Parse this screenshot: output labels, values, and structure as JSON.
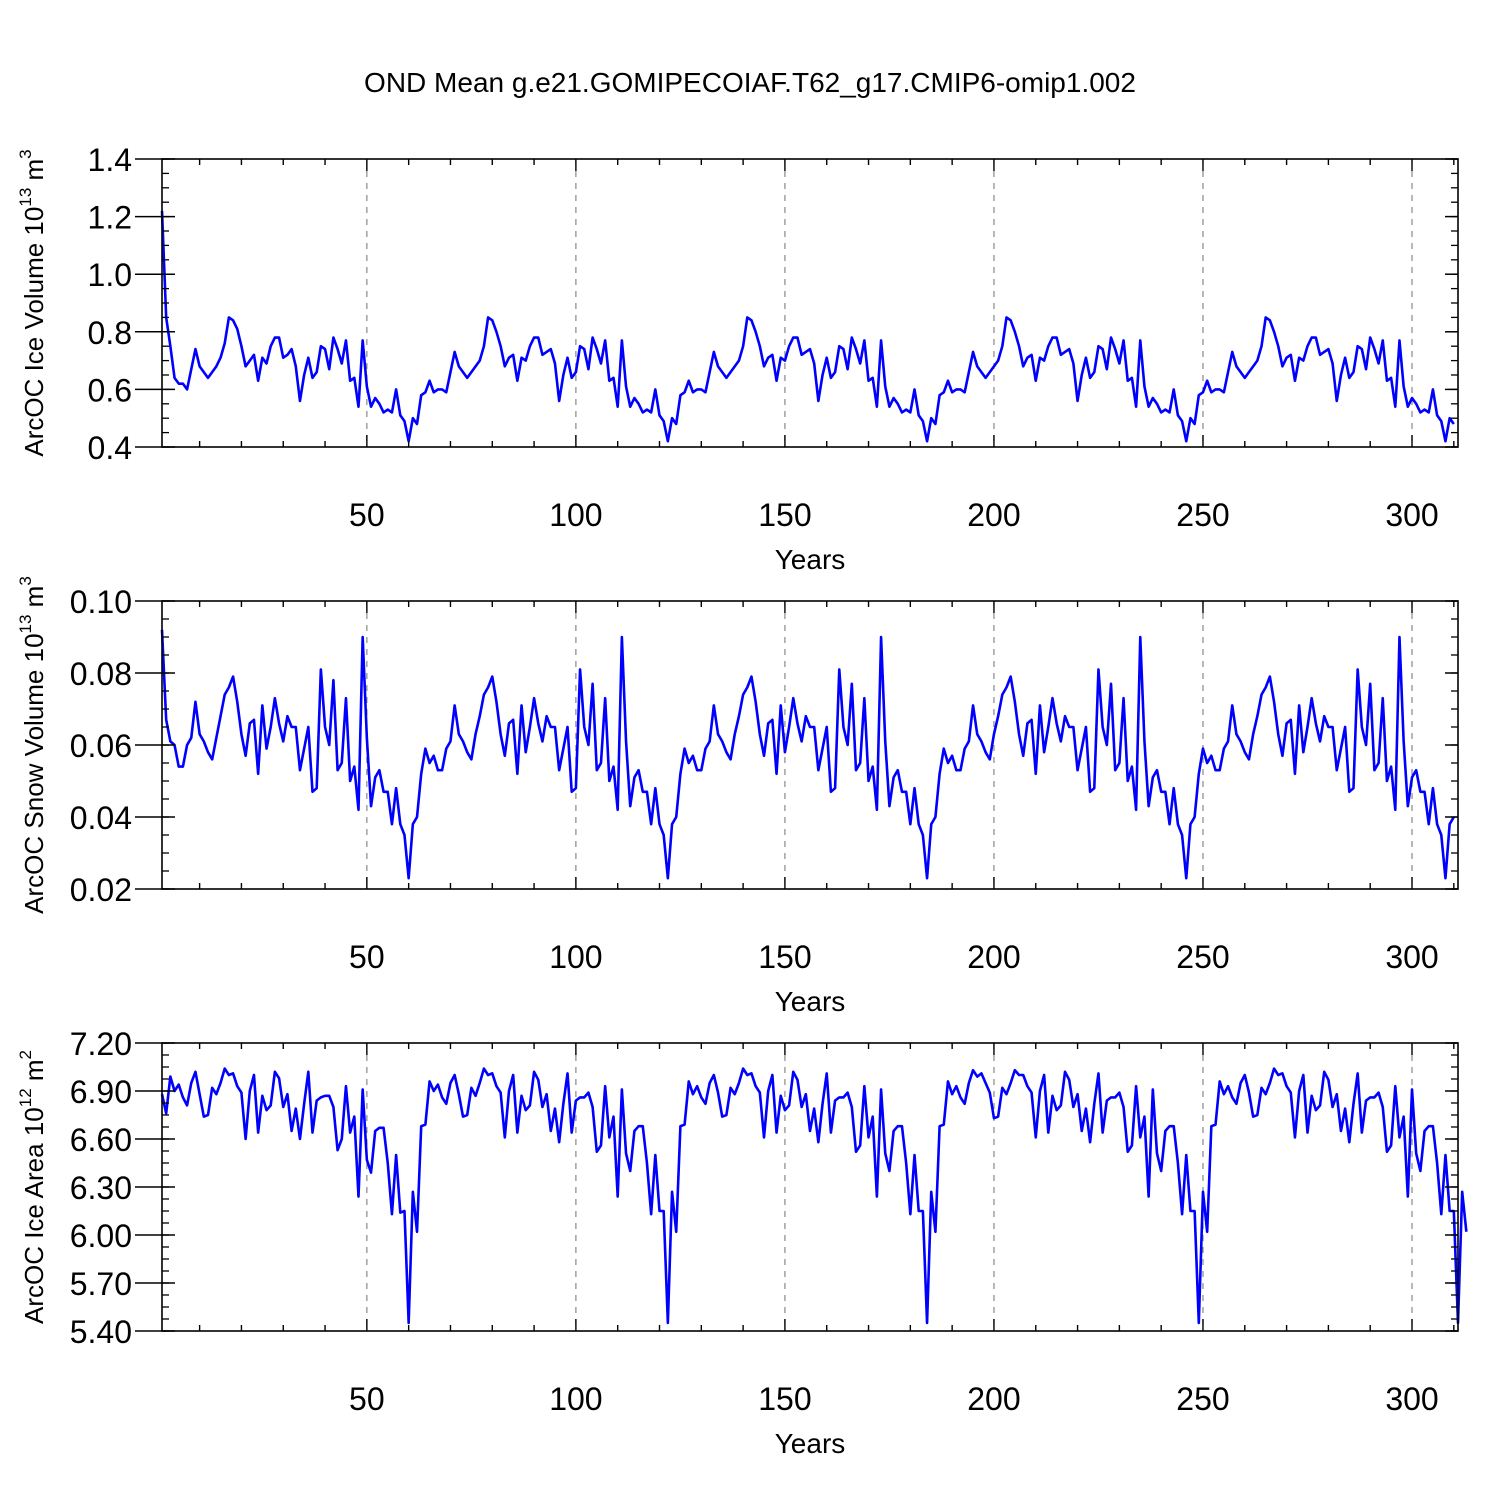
{
  "title": "OND Mean g.e21.GOMIPECOIAF.T62_g17.CMIP6-omip1.002",
  "colors": {
    "series": "#0000ff",
    "axis": "#000000",
    "grid": "#888888"
  },
  "chart_data": [
    {
      "type": "line",
      "ylabel": "ArcOC Ice Volume",
      "yunit_base": "10",
      "yunit_exp": "13",
      "yunit_suffix": "m",
      "yunit_suffix_exp": "3",
      "xlabel": "Years",
      "xlim": [
        1,
        311
      ],
      "ylim": [
        0.4,
        1.4
      ],
      "xticks": [
        "50",
        "100",
        "150",
        "200",
        "250",
        "300"
      ],
      "yticks": [
        "0.4",
        "0.6",
        "0.8",
        "1.0",
        "1.2",
        "1.4"
      ],
      "grid": "vertical dashed at major x ticks",
      "x_start": 1,
      "values": [
        1.22,
        0.85,
        0.75,
        0.64,
        0.62,
        0.62,
        0.6,
        0.67,
        0.74,
        0.68,
        0.66,
        0.64,
        0.66,
        0.68,
        0.71,
        0.76,
        0.85,
        0.84,
        0.81,
        0.75,
        0.68,
        0.7,
        0.72,
        0.63,
        0.71,
        0.69,
        0.75,
        0.78,
        0.78,
        0.71,
        0.72,
        0.74,
        0.68,
        0.56,
        0.65,
        0.71,
        0.64,
        0.66,
        0.75,
        0.74,
        0.67,
        0.78,
        0.74,
        0.69,
        0.77,
        0.63,
        0.64,
        0.54,
        0.77,
        0.61,
        0.54,
        0.57,
        0.55,
        0.52,
        0.53,
        0.52,
        0.6,
        0.51,
        0.49,
        0.42,
        0.5,
        0.48,
        0.58,
        0.59,
        0.63,
        0.59,
        0.6,
        0.6,
        0.59,
        0.66,
        0.73,
        0.68,
        0.66,
        0.64,
        0.66,
        0.68,
        0.7,
        0.75,
        0.85,
        0.84,
        0.8,
        0.75,
        0.68,
        0.71,
        0.72,
        0.63,
        0.71,
        0.7,
        0.75,
        0.78,
        0.78,
        0.72,
        0.73,
        0.74,
        0.69,
        0.56,
        0.65,
        0.71,
        0.64,
        0.66,
        0.75,
        0.74,
        0.67,
        0.78,
        0.74,
        0.69,
        0.77,
        0.63,
        0.64,
        0.54,
        0.77,
        0.61,
        0.54,
        0.57,
        0.55,
        0.52,
        0.53,
        0.52,
        0.6,
        0.51,
        0.49,
        0.42,
        0.5,
        0.48,
        0.58,
        0.59,
        0.63,
        0.59,
        0.6,
        0.6,
        0.59,
        0.66,
        0.73,
        0.68,
        0.66,
        0.64,
        0.66,
        0.68,
        0.7,
        0.75,
        0.85,
        0.84,
        0.8,
        0.75,
        0.68,
        0.71,
        0.72,
        0.63,
        0.71,
        0.7,
        0.75,
        0.78,
        0.78,
        0.72,
        0.73,
        0.74,
        0.69,
        0.56,
        0.65,
        0.71,
        0.64,
        0.66,
        0.75,
        0.74,
        0.67,
        0.78,
        0.74,
        0.69,
        0.77,
        0.63,
        0.64,
        0.54,
        0.77,
        0.61,
        0.54,
        0.57,
        0.55,
        0.52,
        0.53,
        0.52,
        0.6,
        0.51,
        0.49,
        0.42,
        0.5,
        0.48,
        0.58,
        0.59,
        0.63,
        0.59,
        0.6,
        0.6,
        0.59,
        0.66,
        0.73,
        0.68,
        0.66,
        0.64,
        0.66,
        0.68,
        0.7,
        0.75,
        0.85,
        0.84,
        0.8,
        0.75,
        0.68,
        0.71,
        0.72,
        0.63,
        0.71,
        0.7,
        0.75,
        0.78,
        0.78,
        0.72,
        0.73,
        0.74,
        0.69,
        0.56,
        0.65,
        0.71,
        0.64,
        0.66,
        0.75,
        0.74,
        0.67,
        0.78,
        0.74,
        0.69,
        0.77,
        0.63,
        0.64,
        0.54,
        0.77,
        0.61,
        0.54,
        0.57,
        0.55,
        0.52,
        0.53,
        0.52,
        0.6,
        0.51,
        0.49,
        0.42,
        0.5,
        0.48,
        0.58,
        0.59,
        0.63,
        0.59,
        0.6,
        0.6,
        0.59,
        0.66,
        0.73,
        0.68,
        0.66,
        0.64,
        0.66,
        0.68,
        0.7,
        0.75,
        0.85,
        0.84,
        0.8,
        0.75,
        0.68,
        0.71,
        0.72,
        0.63,
        0.71,
        0.7,
        0.75,
        0.78,
        0.78,
        0.72,
        0.73,
        0.74,
        0.69,
        0.56,
        0.65,
        0.71,
        0.64,
        0.66,
        0.75,
        0.74,
        0.67,
        0.78,
        0.74,
        0.69,
        0.77,
        0.63,
        0.64,
        0.54,
        0.77,
        0.61,
        0.54,
        0.57,
        0.55,
        0.52,
        0.53,
        0.52,
        0.6,
        0.51,
        0.49,
        0.42,
        0.5,
        0.48
      ]
    },
    {
      "type": "line",
      "ylabel": "ArcOC Snow Volume",
      "yunit_base": "10",
      "yunit_exp": "13",
      "yunit_suffix": "m",
      "yunit_suffix_exp": "3",
      "xlabel": "Years",
      "xlim": [
        1,
        311
      ],
      "ylim": [
        0.02,
        0.1
      ],
      "xticks": [
        "50",
        "100",
        "150",
        "200",
        "250",
        "300"
      ],
      "yticks": [
        "0.02",
        "0.04",
        "0.06",
        "0.08",
        "0.10"
      ],
      "grid": "vertical dashed at major x ticks",
      "x_start": 1,
      "values": [
        0.092,
        0.067,
        0.061,
        0.06,
        0.054,
        0.054,
        0.06,
        0.062,
        0.072,
        0.063,
        0.061,
        0.058,
        0.056,
        0.062,
        0.068,
        0.074,
        0.076,
        0.079,
        0.072,
        0.063,
        0.057,
        0.066,
        0.067,
        0.052,
        0.071,
        0.059,
        0.065,
        0.073,
        0.066,
        0.061,
        0.068,
        0.065,
        0.065,
        0.053,
        0.059,
        0.065,
        0.047,
        0.048,
        0.081,
        0.065,
        0.06,
        0.078,
        0.053,
        0.055,
        0.073,
        0.05,
        0.054,
        0.042,
        0.09,
        0.062,
        0.043,
        0.051,
        0.053,
        0.047,
        0.047,
        0.038,
        0.048,
        0.038,
        0.035,
        0.023,
        0.038,
        0.04,
        0.052,
        0.059,
        0.055,
        0.057,
        0.053,
        0.053,
        0.059,
        0.061,
        0.071,
        0.063,
        0.061,
        0.058,
        0.056,
        0.063,
        0.068,
        0.074,
        0.076,
        0.079,
        0.072,
        0.063,
        0.057,
        0.066,
        0.067,
        0.052,
        0.071,
        0.058,
        0.065,
        0.073,
        0.066,
        0.061,
        0.068,
        0.065,
        0.065,
        0.053,
        0.059,
        0.065,
        0.047,
        0.048,
        0.081,
        0.065,
        0.06,
        0.077,
        0.053,
        0.055,
        0.073,
        0.05,
        0.054,
        0.042,
        0.09,
        0.061,
        0.043,
        0.051,
        0.053,
        0.047,
        0.047,
        0.038,
        0.048,
        0.038,
        0.035,
        0.023,
        0.038,
        0.04,
        0.052,
        0.059,
        0.055,
        0.057,
        0.053,
        0.053,
        0.059,
        0.061,
        0.071,
        0.063,
        0.061,
        0.058,
        0.056,
        0.063,
        0.068,
        0.074,
        0.076,
        0.079,
        0.072,
        0.063,
        0.057,
        0.066,
        0.067,
        0.052,
        0.071,
        0.058,
        0.065,
        0.073,
        0.066,
        0.061,
        0.068,
        0.065,
        0.065,
        0.053,
        0.059,
        0.065,
        0.047,
        0.048,
        0.081,
        0.065,
        0.06,
        0.077,
        0.053,
        0.055,
        0.073,
        0.05,
        0.054,
        0.042,
        0.09,
        0.061,
        0.043,
        0.051,
        0.053,
        0.047,
        0.047,
        0.038,
        0.048,
        0.038,
        0.035,
        0.023,
        0.038,
        0.04,
        0.052,
        0.059,
        0.055,
        0.057,
        0.053,
        0.053,
        0.059,
        0.061,
        0.071,
        0.063,
        0.061,
        0.058,
        0.056,
        0.063,
        0.068,
        0.074,
        0.076,
        0.079,
        0.072,
        0.063,
        0.057,
        0.066,
        0.067,
        0.052,
        0.071,
        0.058,
        0.065,
        0.073,
        0.066,
        0.061,
        0.068,
        0.065,
        0.065,
        0.053,
        0.059,
        0.065,
        0.047,
        0.048,
        0.081,
        0.065,
        0.06,
        0.077,
        0.053,
        0.055,
        0.073,
        0.05,
        0.054,
        0.042,
        0.09,
        0.061,
        0.043,
        0.051,
        0.053,
        0.047,
        0.047,
        0.038,
        0.048,
        0.038,
        0.035,
        0.023,
        0.038,
        0.04,
        0.052,
        0.059,
        0.055,
        0.057,
        0.053,
        0.053,
        0.059,
        0.061,
        0.071,
        0.063,
        0.061,
        0.058,
        0.056,
        0.063,
        0.068,
        0.074,
        0.076,
        0.079,
        0.072,
        0.063,
        0.057,
        0.066,
        0.067,
        0.052,
        0.071,
        0.058,
        0.065,
        0.073,
        0.066,
        0.061,
        0.068,
        0.065,
        0.065,
        0.053,
        0.059,
        0.065,
        0.047,
        0.048,
        0.081,
        0.065,
        0.06,
        0.077,
        0.053,
        0.055,
        0.073,
        0.05,
        0.054,
        0.042,
        0.09,
        0.061,
        0.043,
        0.051,
        0.053,
        0.047,
        0.047,
        0.038,
        0.048,
        0.038,
        0.035,
        0.023,
        0.038,
        0.04
      ]
    },
    {
      "type": "line",
      "ylabel": "ArcOC Ice Area",
      "yunit_base": "10",
      "yunit_exp": "12",
      "yunit_suffix": "m",
      "yunit_suffix_exp": "2",
      "xlabel": "Years",
      "xlim": [
        1,
        311
      ],
      "ylim": [
        5.4,
        7.2
      ],
      "xticks": [
        "50",
        "100",
        "150",
        "200",
        "250",
        "300"
      ],
      "yticks": [
        "5.40",
        "5.70",
        "6.00",
        "6.30",
        "6.60",
        "6.90",
        "7.20"
      ],
      "grid": "vertical dashed at major x ticks",
      "x_start": 1,
      "values": [
        6.88,
        6.76,
        6.99,
        6.9,
        6.94,
        6.86,
        6.81,
        6.95,
        7.02,
        6.88,
        6.74,
        6.75,
        6.92,
        6.88,
        6.95,
        7.04,
        7.0,
        7.01,
        6.93,
        6.89,
        6.6,
        6.9,
        7.0,
        6.64,
        6.87,
        6.78,
        6.81,
        7.02,
        6.98,
        6.8,
        6.88,
        6.65,
        6.79,
        6.6,
        6.82,
        7.02,
        6.64,
        6.84,
        6.86,
        6.87,
        6.87,
        6.8,
        6.53,
        6.6,
        6.93,
        6.64,
        6.74,
        6.24,
        6.91,
        6.47,
        6.39,
        6.65,
        6.67,
        6.67,
        6.45,
        6.13,
        6.5,
        6.14,
        6.15,
        5.45,
        6.27,
        6.02,
        6.68,
        6.69,
        6.96,
        6.9,
        6.94,
        6.86,
        6.82,
        6.95,
        7.0,
        6.88,
        6.74,
        6.75,
        6.92,
        6.87,
        6.95,
        7.04,
        7.0,
        7.01,
        6.93,
        6.89,
        6.61,
        6.9,
        7.0,
        6.64,
        6.87,
        6.78,
        6.81,
        7.02,
        6.97,
        6.8,
        6.88,
        6.65,
        6.79,
        6.58,
        6.82,
        7.01,
        6.64,
        6.84,
        6.86,
        6.86,
        6.89,
        6.8,
        6.52,
        6.56,
        6.93,
        6.61,
        6.74,
        6.24,
        6.91,
        6.51,
        6.4,
        6.65,
        6.68,
        6.68,
        6.45,
        6.13,
        6.5,
        6.15,
        6.15,
        5.45,
        6.27,
        6.02,
        6.68,
        6.69,
        6.96,
        6.88,
        6.93,
        6.86,
        6.82,
        6.95,
        7.0,
        6.89,
        6.74,
        6.75,
        6.92,
        6.88,
        6.95,
        7.04,
        7.0,
        7.01,
        6.93,
        6.89,
        6.61,
        6.9,
        7.0,
        6.64,
        6.87,
        6.78,
        6.81,
        7.02,
        6.97,
        6.8,
        6.88,
        6.65,
        6.79,
        6.58,
        6.82,
        7.01,
        6.64,
        6.84,
        6.86,
        6.86,
        6.89,
        6.8,
        6.52,
        6.56,
        6.93,
        6.61,
        6.74,
        6.24,
        6.91,
        6.51,
        6.4,
        6.65,
        6.68,
        6.68,
        6.45,
        6.13,
        6.5,
        6.15,
        6.15,
        5.45,
        6.27,
        6.02,
        6.68,
        6.69,
        6.96,
        6.88,
        6.93,
        6.86,
        6.82,
        6.95,
        7.03,
        6.99,
        7.01,
        6.95,
        6.89,
        6.73,
        6.74,
        6.92,
        6.88,
        6.95,
        7.03,
        7.0,
        7.0,
        6.93,
        6.89,
        6.61,
        6.9,
        7.0,
        6.64,
        6.87,
        6.78,
        6.81,
        7.02,
        6.97,
        6.8,
        6.88,
        6.65,
        6.79,
        6.58,
        6.82,
        7.01,
        6.64,
        6.84,
        6.86,
        6.86,
        6.89,
        6.8,
        6.52,
        6.56,
        6.93,
        6.61,
        6.74,
        6.24,
        6.91,
        6.51,
        6.4,
        6.65,
        6.68,
        6.68,
        6.45,
        6.13,
        6.5,
        6.15,
        6.15,
        5.45,
        6.27,
        6.02,
        6.68,
        6.69,
        6.96,
        6.88,
        6.93,
        6.86,
        6.82,
        6.95,
        7.0,
        6.89,
        6.74,
        6.75,
        6.92,
        6.88,
        6.95,
        7.04,
        7.0,
        7.01,
        6.93,
        6.89,
        6.61,
        6.9,
        7.0,
        6.64,
        6.87,
        6.78,
        6.81,
        7.02,
        6.97,
        6.8,
        6.88,
        6.65,
        6.79,
        6.58,
        6.82,
        7.01,
        6.64,
        6.84,
        6.86,
        6.86,
        6.89,
        6.8,
        6.52,
        6.56,
        6.93,
        6.61,
        6.74,
        6.24,
        6.91,
        6.51,
        6.4,
        6.65,
        6.68,
        6.68,
        6.45,
        6.13,
        6.5,
        6.15,
        6.15,
        5.45,
        6.27,
        6.02
      ]
    }
  ]
}
